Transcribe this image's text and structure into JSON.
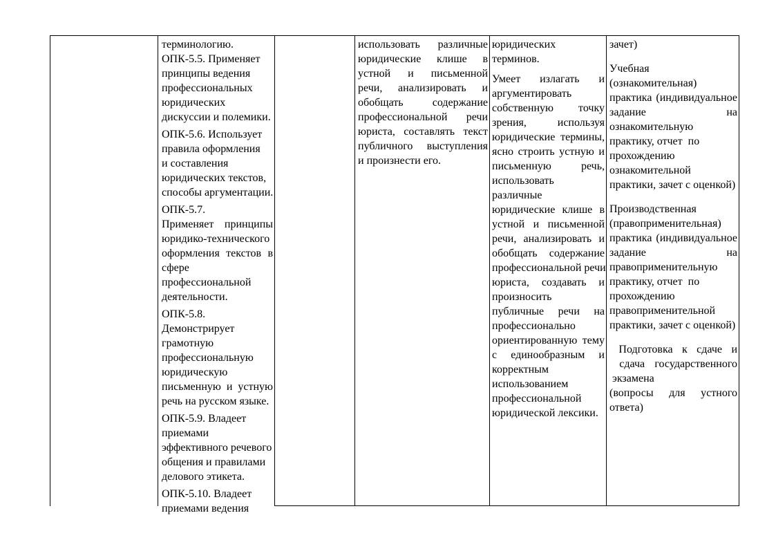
{
  "document": {
    "kind": "word-document-table-page",
    "background_color": "#ffffff",
    "text_color": "#000000",
    "border_color": "#000000"
  },
  "table": {
    "columns": [
      {
        "name": "empty-left-column",
        "paragraphs": []
      },
      {
        "name": "competency-indicators-opk",
        "paragraphs": [
          {
            "lines": [
              {
                "t": "терминологию."
              },
              {
                "t": "ОПК-5.5. Применяет"
              },
              {
                "t": "принципы ведения"
              },
              {
                "t": "профессиональных"
              },
              {
                "t": "юридических"
              },
              {
                "t": "дискуссии и полемики."
              }
            ]
          },
          {
            "lines": [
              {
                "t": "ОПК-5.6. Использует"
              },
              {
                "t": "правила оформления"
              },
              {
                "t": "и составления"
              },
              {
                "t": "юридических текстов,"
              },
              {
                "t": "способы аргументации."
              }
            ]
          },
          {
            "lines": [
              {
                "t": "ОПК-5.7."
              },
              {
                "t": "Применяет принципы",
                "j": true
              },
              {
                "t": "юридико-технического"
              },
              {
                "t": "оформления текстов в",
                "j": true
              },
              {
                "t": "сфере"
              },
              {
                "t": "профессиональной"
              },
              {
                "t": "деятельности."
              }
            ]
          },
          {
            "lines": [
              {
                "t": "ОПК-5.8."
              },
              {
                "t": "Демонстрирует"
              },
              {
                "t": "грамотную"
              },
              {
                "t": "профессиональную"
              },
              {
                "t": "юридическую"
              },
              {
                "t": "письменную и устную",
                "j": true
              },
              {
                "t": "речь на русском языке."
              }
            ]
          },
          {
            "lines": [
              {
                "t": "ОПК-5.9. Владеет"
              },
              {
                "t": "приемами"
              },
              {
                "t": "эффективного речевого"
              },
              {
                "t": "общения и правилами"
              },
              {
                "t": "делового этикета."
              }
            ]
          },
          {
            "lines": [
              {
                "t": "ОПК-5.10. Владеет"
              },
              {
                "t": "приемами ведения"
              }
            ]
          }
        ]
      },
      {
        "name": "empty-middle-column",
        "paragraphs": []
      },
      {
        "name": "skills-umet-continuation",
        "paragraphs": [
          {
            "lines": [
              {
                "t": "использовать различные",
                "j": true
              },
              {
                "t": "юридические клише в",
                "j": true
              },
              {
                "t": "устной и письменной",
                "j": true
              },
              {
                "t": "речи, анализировать и",
                "j": true
              },
              {
                "t": "обобщать содержание",
                "j": true
              },
              {
                "t": "профессиональной речи",
                "j": true
              },
              {
                "t": "юриста, составлять текст",
                "j": true
              },
              {
                "t": "публичного выступления",
                "j": true
              },
              {
                "t": "и произнести его."
              }
            ]
          }
        ]
      },
      {
        "name": "umeet-description",
        "paragraphs": [
          {
            "lines": [
              {
                "t": "юридических"
              },
              {
                "t": "терминов."
              }
            ]
          },
          {
            "lines": [
              {
                "t": "Умеет излагать и",
                "j": true
              },
              {
                "t": "аргументировать"
              },
              {
                "t": "собственную точку",
                "j": true
              },
              {
                "t": "зрения, используя",
                "j": true
              },
              {
                "t": "юридические термины,",
                "j": true
              },
              {
                "t": "ясно строить устную и",
                "j": true
              },
              {
                "t": "письменную речь,",
                "j": true
              },
              {
                "t": "использовать"
              },
              {
                "t": "различные"
              },
              {
                "t": "юридические клише в",
                "j": true
              },
              {
                "t": "устной и письменной",
                "j": true
              },
              {
                "t": "речи, анализировать и",
                "j": true
              },
              {
                "t": "обобщать содержание",
                "j": true
              },
              {
                "t": "профессиональной речи"
              },
              {
                "t": "юриста, создавать и",
                "j": true
              },
              {
                "t": "произносить"
              },
              {
                "t": "публичные речи на",
                "j": true
              },
              {
                "t": "профессионально"
              },
              {
                "t": "ориентированную тему",
                "j": true
              },
              {
                "t": "с единообразным и",
                "j": true
              },
              {
                "t": "корректным"
              },
              {
                "t": "использованием"
              },
              {
                "t": "профессиональной"
              },
              {
                "t": "юридической лексики."
              }
            ]
          }
        ]
      },
      {
        "name": "assessment-forms",
        "paragraphs": [
          {
            "lines": [
              {
                "t": "зачет)"
              }
            ]
          },
          {
            "lines": [
              {
                "t": "Учебная"
              },
              {
                "t": "(ознакомительная)"
              },
              {
                "t": "практика (индивидуальное",
                "j": true
              },
              {
                "t": "задание на",
                "j": true
              },
              {
                "t": "ознакомительную"
              },
              {
                "t": "практику, отчет  по"
              },
              {
                "t": "прохождению"
              },
              {
                "t": "ознакомительной"
              },
              {
                "t": "практики, зачет с оценкой)"
              }
            ]
          },
          {
            "lines": [
              {
                "t": "Производственная"
              },
              {
                "t": "(правоприменительная)"
              },
              {
                "t": "практика (индивидуальное",
                "j": true
              },
              {
                "t": "задание на",
                "j": true
              },
              {
                "t": "правоприменительную"
              },
              {
                "t": "практику, отчет  по"
              },
              {
                "t": "прохождению"
              },
              {
                "t": "правоприменительной"
              },
              {
                "t": "практики, зачет с оценкой)"
              }
            ]
          },
          {
            "lines": [
              {
                "t": " Подготовка к сдаче и",
                "j": true
              },
              {
                "t": " сдача государственного",
                "j": true
              },
              {
                "t": " экзамена"
              },
              {
                "t": "(вопросы для устного",
                "j": true
              },
              {
                "t": "ответа)"
              }
            ]
          }
        ]
      }
    ]
  }
}
